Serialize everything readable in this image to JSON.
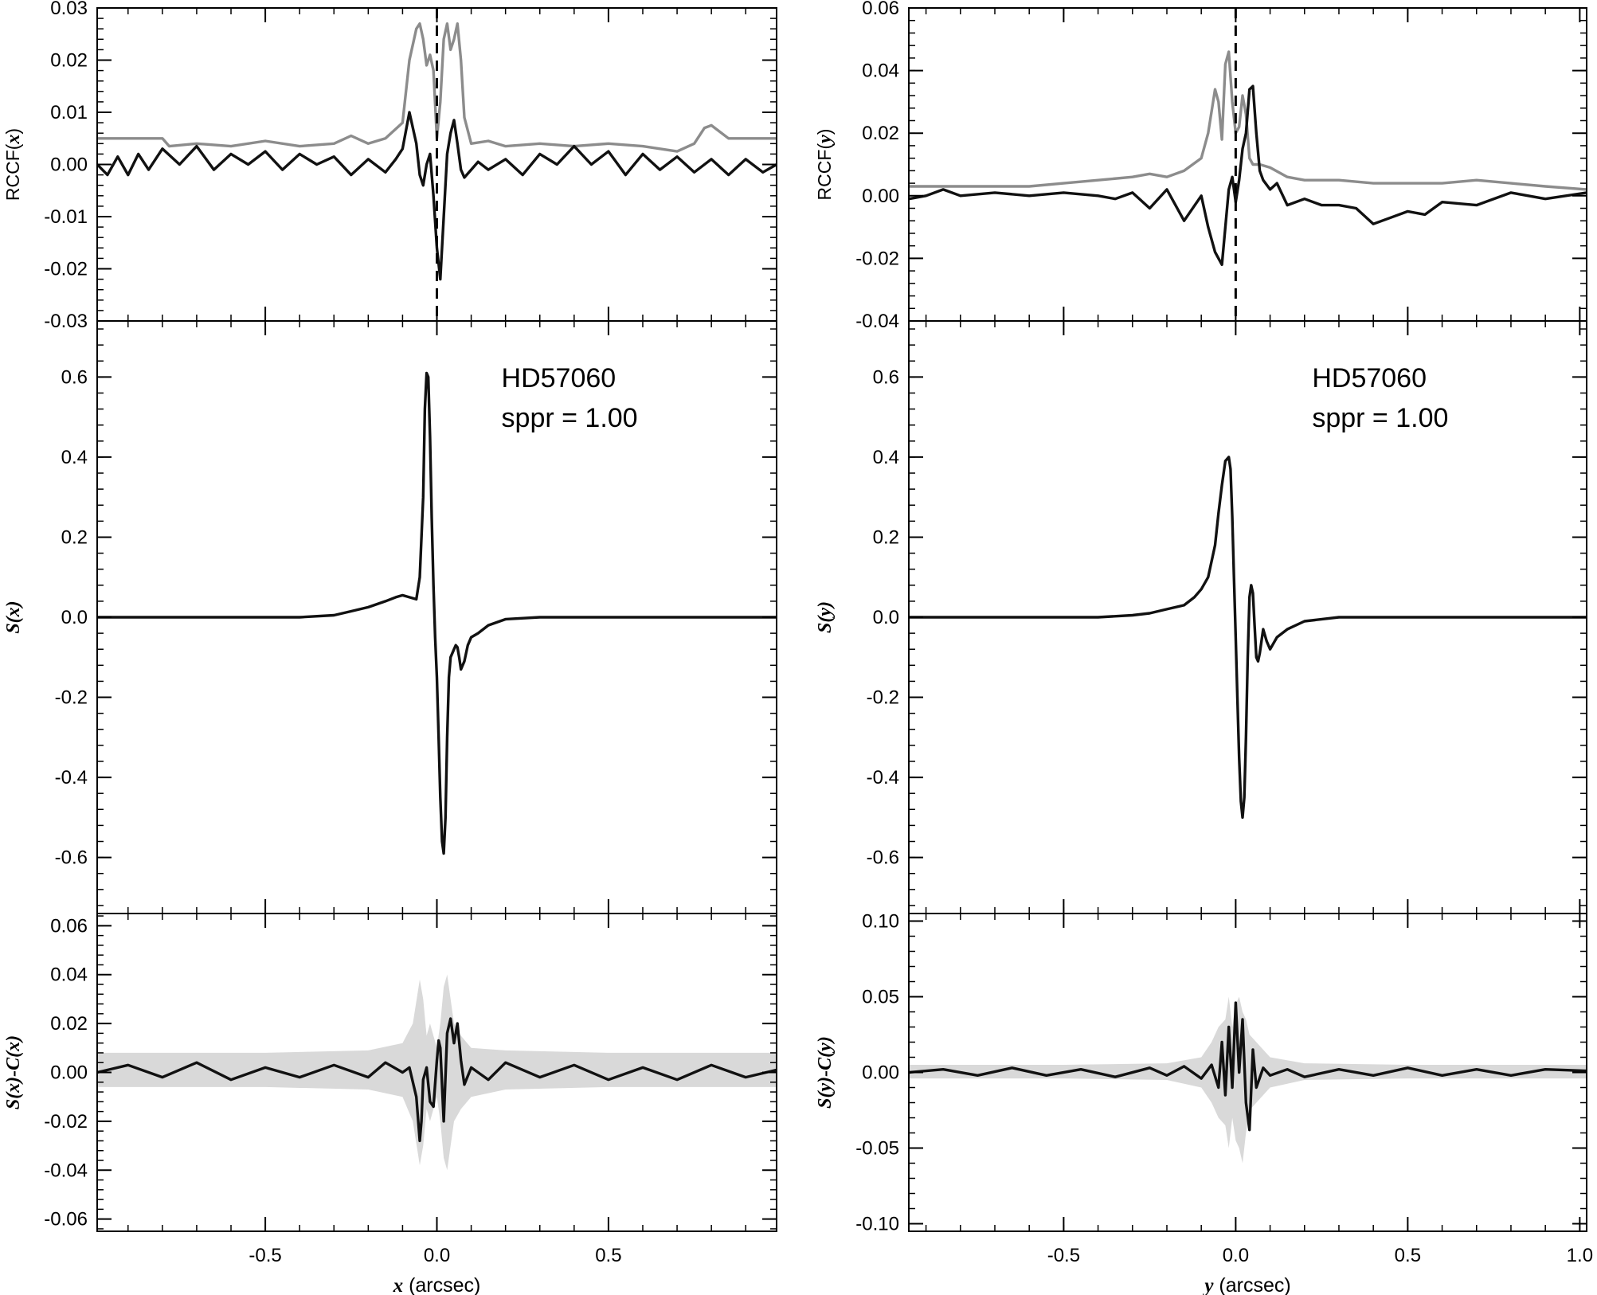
{
  "chart_data": [
    {
      "panel": "left-top",
      "type": "line",
      "ylabel": "RCCF(x)",
      "ylabel_parts": [
        "RCCF(",
        "x",
        ")"
      ],
      "xlim": [
        -0.99,
        0.99
      ],
      "ylim": [
        -0.03,
        0.03
      ],
      "yticks": [
        -0.03,
        -0.02,
        -0.01,
        0.0,
        0.01,
        0.02,
        0.03
      ],
      "ytick_labels": [
        "-0.03",
        "-0.02",
        "-0.01",
        "0.00",
        "0.01",
        "0.02",
        "0.03"
      ],
      "reference_line_x": 0.0,
      "series": [
        {
          "color": "#8c8c8c",
          "x": [
            -0.99,
            -0.8,
            -0.78,
            -0.7,
            -0.6,
            -0.5,
            -0.4,
            -0.3,
            -0.25,
            -0.2,
            -0.15,
            -0.1,
            -0.08,
            -0.06,
            -0.05,
            -0.04,
            -0.03,
            -0.02,
            -0.01,
            0.0,
            0.01,
            0.02,
            0.03,
            0.04,
            0.05,
            0.06,
            0.07,
            0.08,
            0.1,
            0.15,
            0.2,
            0.3,
            0.4,
            0.5,
            0.6,
            0.7,
            0.75,
            0.78,
            0.8,
            0.85,
            0.9,
            0.99
          ],
          "y": [
            0.005,
            0.005,
            0.0035,
            0.004,
            0.0035,
            0.0045,
            0.0035,
            0.004,
            0.0055,
            0.004,
            0.005,
            0.008,
            0.02,
            0.026,
            0.027,
            0.024,
            0.019,
            0.021,
            0.018,
            0.005,
            0.012,
            0.024,
            0.027,
            0.022,
            0.024,
            0.027,
            0.02,
            0.009,
            0.004,
            0.0045,
            0.0035,
            0.004,
            0.0035,
            0.004,
            0.0035,
            0.0025,
            0.004,
            0.007,
            0.0075,
            0.005,
            0.005,
            0.005
          ]
        },
        {
          "color": "#111111",
          "x": [
            -0.99,
            -0.96,
            -0.93,
            -0.9,
            -0.87,
            -0.84,
            -0.8,
            -0.75,
            -0.7,
            -0.65,
            -0.6,
            -0.55,
            -0.5,
            -0.45,
            -0.4,
            -0.35,
            -0.3,
            -0.25,
            -0.2,
            -0.15,
            -0.12,
            -0.1,
            -0.08,
            -0.06,
            -0.05,
            -0.04,
            -0.03,
            -0.02,
            -0.01,
            0.0,
            0.01,
            0.02,
            0.03,
            0.04,
            0.05,
            0.06,
            0.07,
            0.08,
            0.1,
            0.12,
            0.15,
            0.2,
            0.25,
            0.3,
            0.35,
            0.4,
            0.45,
            0.5,
            0.55,
            0.6,
            0.65,
            0.7,
            0.75,
            0.8,
            0.85,
            0.9,
            0.95,
            0.99
          ],
          "y": [
            0.0,
            -0.002,
            0.0015,
            -0.002,
            0.002,
            -0.001,
            0.003,
            0.0,
            0.0035,
            -0.001,
            0.002,
            0.0,
            0.0025,
            -0.001,
            0.002,
            0.0,
            0.0015,
            -0.002,
            0.001,
            -0.0015,
            0.001,
            0.003,
            0.01,
            0.004,
            -0.002,
            -0.004,
            0.0,
            0.002,
            -0.006,
            -0.016,
            -0.022,
            -0.01,
            0.002,
            0.006,
            0.0085,
            0.004,
            -0.001,
            -0.0025,
            -0.001,
            0.0005,
            -0.001,
            0.001,
            -0.002,
            0.002,
            0.0,
            0.0035,
            0.0,
            0.0025,
            -0.002,
            0.002,
            -0.001,
            0.0015,
            -0.0015,
            0.001,
            -0.002,
            0.001,
            -0.0015,
            0.0
          ]
        }
      ]
    },
    {
      "panel": "left-middle",
      "type": "line",
      "ylabel": "S(x)",
      "ylabel_parts": [
        "",
        "S(x)",
        ""
      ],
      "xlim": [
        -0.99,
        0.99
      ],
      "ylim": [
        -0.74,
        0.74
      ],
      "yticks": [
        -0.6,
        -0.4,
        -0.2,
        0.0,
        0.2,
        0.4,
        0.6
      ],
      "ytick_labels": [
        "-0.6",
        "-0.4",
        "-0.2",
        "0.0",
        "0.2",
        "0.4",
        "0.6"
      ],
      "annotations": [
        "HD57060",
        "sppr = 1.00"
      ],
      "series": [
        {
          "color": "#111111",
          "x": [
            -0.99,
            -0.8,
            -0.6,
            -0.4,
            -0.3,
            -0.25,
            -0.2,
            -0.15,
            -0.12,
            -0.1,
            -0.08,
            -0.06,
            -0.05,
            -0.04,
            -0.035,
            -0.03,
            -0.025,
            -0.02,
            -0.015,
            -0.01,
            -0.005,
            0.0,
            0.005,
            0.01,
            0.015,
            0.02,
            0.025,
            0.03,
            0.035,
            0.04,
            0.05,
            0.055,
            0.06,
            0.065,
            0.07,
            0.08,
            0.09,
            0.1,
            0.12,
            0.15,
            0.2,
            0.3,
            0.5,
            0.7,
            0.99
          ],
          "y": [
            0.0,
            0.0,
            0.0,
            0.0,
            0.005,
            0.015,
            0.025,
            0.04,
            0.05,
            0.055,
            0.05,
            0.045,
            0.1,
            0.3,
            0.52,
            0.61,
            0.6,
            0.45,
            0.25,
            0.08,
            -0.05,
            -0.15,
            -0.3,
            -0.45,
            -0.56,
            -0.59,
            -0.5,
            -0.3,
            -0.15,
            -0.1,
            -0.08,
            -0.07,
            -0.075,
            -0.1,
            -0.13,
            -0.11,
            -0.07,
            -0.05,
            -0.04,
            -0.02,
            -0.005,
            0.0,
            0.0,
            0.0,
            0.0
          ]
        }
      ]
    },
    {
      "panel": "left-bottom",
      "type": "line",
      "ylabel": "S(x)-C(x)",
      "ylabel_parts": [
        "",
        "S(x)-C(x)",
        ""
      ],
      "xlim": [
        -0.99,
        0.99
      ],
      "ylim": [
        -0.065,
        0.065
      ],
      "yticks": [
        -0.06,
        -0.04,
        -0.02,
        0.0,
        0.02,
        0.04,
        0.06
      ],
      "ytick_labels": [
        "-0.06",
        "-0.04",
        "-0.02",
        "0.00",
        "0.02",
        "0.04",
        "0.06"
      ],
      "xticks": [
        -0.5,
        0.0,
        0.5
      ],
      "xtick_labels": [
        "-0.5",
        "0.0",
        "0.5"
      ],
      "xlabel": "x (arcsec)",
      "xlabel_parts": [
        "x",
        " (arcsec)"
      ],
      "band": {
        "color": "#d9d9d9",
        "x": [
          -0.99,
          -0.5,
          -0.2,
          -0.1,
          -0.07,
          -0.05,
          -0.04,
          -0.03,
          -0.02,
          -0.01,
          0.0,
          0.01,
          0.02,
          0.03,
          0.04,
          0.05,
          0.07,
          0.1,
          0.2,
          0.5,
          0.99
        ],
        "upper": [
          0.008,
          0.008,
          0.009,
          0.012,
          0.02,
          0.038,
          0.03,
          0.015,
          0.02,
          0.015,
          0.01,
          0.02,
          0.035,
          0.04,
          0.03,
          0.02,
          0.015,
          0.01,
          0.009,
          0.008,
          0.008
        ],
        "lower": [
          -0.006,
          -0.006,
          -0.007,
          -0.01,
          -0.02,
          -0.038,
          -0.03,
          -0.015,
          -0.02,
          -0.015,
          -0.01,
          -0.02,
          -0.035,
          -0.04,
          -0.03,
          -0.02,
          -0.015,
          -0.01,
          -0.007,
          -0.006,
          -0.006
        ]
      },
      "series": [
        {
          "color": "#111111",
          "x": [
            -0.99,
            -0.9,
            -0.8,
            -0.7,
            -0.6,
            -0.5,
            -0.4,
            -0.3,
            -0.2,
            -0.15,
            -0.1,
            -0.08,
            -0.06,
            -0.05,
            -0.045,
            -0.04,
            -0.03,
            -0.02,
            -0.01,
            0.0,
            0.005,
            0.01,
            0.02,
            0.03,
            0.04,
            0.05,
            0.06,
            0.07,
            0.08,
            0.1,
            0.15,
            0.2,
            0.3,
            0.4,
            0.5,
            0.6,
            0.7,
            0.8,
            0.9,
            0.99
          ],
          "y": [
            0.0,
            0.003,
            -0.002,
            0.004,
            -0.003,
            0.002,
            -0.002,
            0.003,
            -0.002,
            0.004,
            0.0,
            0.002,
            -0.01,
            -0.028,
            -0.02,
            -0.003,
            0.002,
            -0.012,
            -0.014,
            0.005,
            0.013,
            0.01,
            -0.02,
            0.016,
            0.022,
            0.012,
            0.02,
            0.005,
            -0.005,
            0.002,
            -0.003,
            0.004,
            -0.002,
            0.003,
            -0.003,
            0.002,
            -0.003,
            0.003,
            -0.002,
            0.001
          ]
        }
      ]
    },
    {
      "panel": "right-top",
      "type": "line",
      "ylabel": "RCCF(y)",
      "ylabel_parts": [
        "RCCF(",
        "y",
        ")"
      ],
      "xlim": [
        -0.95,
        1.02
      ],
      "ylim": [
        -0.04,
        0.06
      ],
      "yticks": [
        -0.04,
        -0.02,
        0.0,
        0.02,
        0.04,
        0.06
      ],
      "ytick_labels": [
        "-0.04",
        "-0.02",
        "0.00",
        "0.02",
        "0.04",
        "0.06"
      ],
      "reference_line_x": 0.0,
      "series": [
        {
          "color": "#8c8c8c",
          "x": [
            -0.95,
            -0.8,
            -0.6,
            -0.5,
            -0.4,
            -0.3,
            -0.25,
            -0.2,
            -0.15,
            -0.1,
            -0.08,
            -0.06,
            -0.05,
            -0.04,
            -0.03,
            -0.02,
            -0.01,
            0.0,
            0.01,
            0.02,
            0.03,
            0.04,
            0.05,
            0.07,
            0.1,
            0.15,
            0.2,
            0.3,
            0.4,
            0.5,
            0.6,
            0.7,
            0.8,
            0.9,
            1.02
          ],
          "y": [
            0.003,
            0.003,
            0.003,
            0.004,
            0.005,
            0.006,
            0.007,
            0.006,
            0.008,
            0.012,
            0.02,
            0.034,
            0.03,
            0.018,
            0.042,
            0.046,
            0.03,
            0.02,
            0.022,
            0.032,
            0.026,
            0.012,
            0.01,
            0.01,
            0.009,
            0.006,
            0.005,
            0.005,
            0.004,
            0.004,
            0.004,
            0.005,
            0.004,
            0.003,
            0.002
          ]
        },
        {
          "color": "#111111",
          "x": [
            -0.95,
            -0.9,
            -0.85,
            -0.8,
            -0.7,
            -0.6,
            -0.5,
            -0.4,
            -0.35,
            -0.3,
            -0.25,
            -0.2,
            -0.15,
            -0.1,
            -0.08,
            -0.06,
            -0.04,
            -0.03,
            -0.02,
            -0.01,
            0.0,
            0.01,
            0.02,
            0.03,
            0.04,
            0.05,
            0.06,
            0.07,
            0.08,
            0.1,
            0.12,
            0.15,
            0.2,
            0.25,
            0.3,
            0.35,
            0.4,
            0.45,
            0.5,
            0.55,
            0.6,
            0.7,
            0.8,
            0.9,
            1.02
          ],
          "y": [
            -0.001,
            0.0,
            0.002,
            0.0,
            0.001,
            0.0,
            0.001,
            0.0,
            -0.001,
            0.001,
            -0.004,
            0.002,
            -0.008,
            0.0,
            -0.01,
            -0.018,
            -0.022,
            -0.01,
            0.002,
            0.006,
            -0.002,
            0.005,
            0.015,
            0.02,
            0.034,
            0.035,
            0.02,
            0.008,
            0.005,
            0.002,
            0.004,
            -0.003,
            -0.001,
            -0.003,
            -0.003,
            -0.004,
            -0.009,
            -0.007,
            -0.005,
            -0.006,
            -0.002,
            -0.003,
            0.001,
            -0.001,
            0.001
          ]
        }
      ]
    },
    {
      "panel": "right-middle",
      "type": "line",
      "ylabel": "S(y)",
      "ylabel_parts": [
        "",
        "S(y)",
        ""
      ],
      "xlim": [
        -0.95,
        1.02
      ],
      "ylim": [
        -0.74,
        0.74
      ],
      "yticks": [
        -0.6,
        -0.4,
        -0.2,
        0.0,
        0.2,
        0.4,
        0.6
      ],
      "ytick_labels": [
        "-0.6",
        "-0.4",
        "-0.2",
        "0.0",
        "0.2",
        "0.4",
        "0.6"
      ],
      "annotations": [
        "HD57060",
        "sppr = 1.00"
      ],
      "series": [
        {
          "color": "#111111",
          "x": [
            -0.95,
            -0.8,
            -0.6,
            -0.4,
            -0.3,
            -0.25,
            -0.2,
            -0.15,
            -0.12,
            -0.1,
            -0.08,
            -0.06,
            -0.05,
            -0.04,
            -0.03,
            -0.02,
            -0.015,
            -0.01,
            -0.005,
            0.0,
            0.005,
            0.01,
            0.015,
            0.02,
            0.025,
            0.03,
            0.035,
            0.04,
            0.045,
            0.05,
            0.055,
            0.06,
            0.065,
            0.07,
            0.08,
            0.09,
            0.1,
            0.12,
            0.15,
            0.2,
            0.3,
            0.5,
            0.7,
            1.02
          ],
          "y": [
            0.0,
            0.0,
            0.0,
            0.0,
            0.005,
            0.01,
            0.02,
            0.03,
            0.05,
            0.07,
            0.1,
            0.18,
            0.26,
            0.33,
            0.39,
            0.4,
            0.37,
            0.25,
            0.1,
            -0.05,
            -0.2,
            -0.35,
            -0.46,
            -0.5,
            -0.45,
            -0.3,
            -0.1,
            0.05,
            0.08,
            0.06,
            -0.02,
            -0.1,
            -0.11,
            -0.09,
            -0.03,
            -0.06,
            -0.08,
            -0.05,
            -0.03,
            -0.01,
            0.0,
            0.0,
            0.0,
            0.0
          ]
        }
      ]
    },
    {
      "panel": "right-bottom",
      "type": "line",
      "ylabel": "S(y)-C(y)",
      "ylabel_parts": [
        "",
        "S(y)-C(y)",
        ""
      ],
      "xlim": [
        -0.95,
        1.02
      ],
      "ylim": [
        -0.105,
        0.105
      ],
      "yticks": [
        -0.1,
        -0.05,
        0.0,
        0.05,
        0.1
      ],
      "ytick_labels": [
        "-0.10",
        "-0.05",
        "0.00",
        "0.05",
        "0.10"
      ],
      "xticks": [
        -0.5,
        0.0,
        0.5,
        1.0
      ],
      "xtick_labels": [
        "-0.5",
        "0.0",
        "0.5",
        "1.0"
      ],
      "xlabel": "y (arcsec)",
      "xlabel_parts": [
        "y",
        " (arcsec)"
      ],
      "band": {
        "color": "#d9d9d9",
        "x": [
          -0.95,
          -0.5,
          -0.2,
          -0.1,
          -0.07,
          -0.05,
          -0.03,
          -0.02,
          -0.01,
          0.0,
          0.01,
          0.02,
          0.03,
          0.04,
          0.06,
          0.1,
          0.2,
          0.5,
          1.02
        ],
        "upper": [
          0.005,
          0.005,
          0.006,
          0.01,
          0.02,
          0.03,
          0.035,
          0.05,
          0.03,
          0.045,
          0.05,
          0.04,
          0.035,
          0.025,
          0.02,
          0.01,
          0.006,
          0.005,
          0.005
        ],
        "lower": [
          -0.004,
          -0.004,
          -0.005,
          -0.01,
          -0.02,
          -0.03,
          -0.035,
          -0.05,
          -0.03,
          -0.045,
          -0.05,
          -0.06,
          -0.04,
          -0.025,
          -0.02,
          -0.01,
          -0.005,
          -0.004,
          -0.004
        ]
      },
      "series": [
        {
          "color": "#111111",
          "x": [
            -0.95,
            -0.85,
            -0.75,
            -0.65,
            -0.55,
            -0.45,
            -0.35,
            -0.25,
            -0.2,
            -0.15,
            -0.1,
            -0.07,
            -0.05,
            -0.04,
            -0.03,
            -0.02,
            -0.01,
            0.0,
            0.01,
            0.02,
            0.03,
            0.04,
            0.05,
            0.06,
            0.08,
            0.1,
            0.15,
            0.2,
            0.3,
            0.4,
            0.5,
            0.6,
            0.7,
            0.8,
            0.9,
            1.02
          ],
          "y": [
            0.0,
            0.002,
            -0.002,
            0.003,
            -0.002,
            0.002,
            -0.003,
            0.003,
            -0.002,
            0.004,
            -0.004,
            0.005,
            -0.01,
            0.02,
            -0.015,
            0.03,
            -0.01,
            0.046,
            0.0,
            0.035,
            -0.02,
            -0.038,
            0.015,
            -0.01,
            0.003,
            -0.002,
            0.002,
            -0.003,
            0.002,
            -0.002,
            0.003,
            -0.002,
            0.002,
            -0.002,
            0.002,
            0.001
          ]
        }
      ]
    }
  ]
}
